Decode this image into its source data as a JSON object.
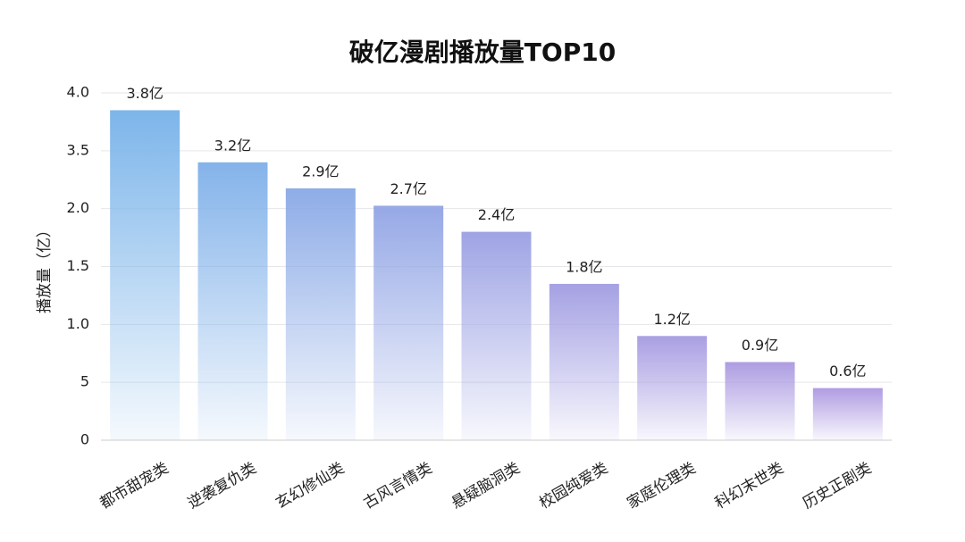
{
  "chart_data": {
    "type": "bar",
    "title": "破亿漫剧播放量TOP10",
    "y_label": "播放量（亿）",
    "categories": [
      "都市甜宠类",
      "逆袭复仇类",
      "玄幻修仙类",
      "古风言情类",
      "悬疑脑洞类",
      "校园纯爱类",
      "家庭伦理类",
      "科幻末世类",
      "历史正剧类"
    ],
    "values": [
      3.8,
      3.2,
      2.9,
      2.7,
      2.4,
      1.8,
      1.2,
      0.9,
      0.6
    ],
    "value_labels": [
      "3.8亿",
      "3.2亿",
      "2.9亿",
      "2.7亿",
      "2.4亿",
      "1.8亿",
      "1.2亿",
      "0.9亿",
      "0.6亿"
    ],
    "colors": [
      "#7db5ea",
      "#84b3ea",
      "#8eace7",
      "#96a8e6",
      "#9ea4e4",
      "#a5a1e3",
      "#a99fe2",
      "#ad9de2",
      "#b09ce2"
    ],
    "ylim": [
      0,
      4
    ],
    "yticks": [
      0,
      {
        "value": 0.667,
        "label": "5"
      },
      {
        "value": 1.333,
        "label": "1.0"
      },
      {
        "value": 2,
        "label": "1.5"
      },
      {
        "value": 2.667,
        "label": "2.0"
      },
      {
        "value": 3.333,
        "label": "3.5"
      },
      {
        "value": 4,
        "label": "4.0"
      }
    ],
    "grid": true
  }
}
